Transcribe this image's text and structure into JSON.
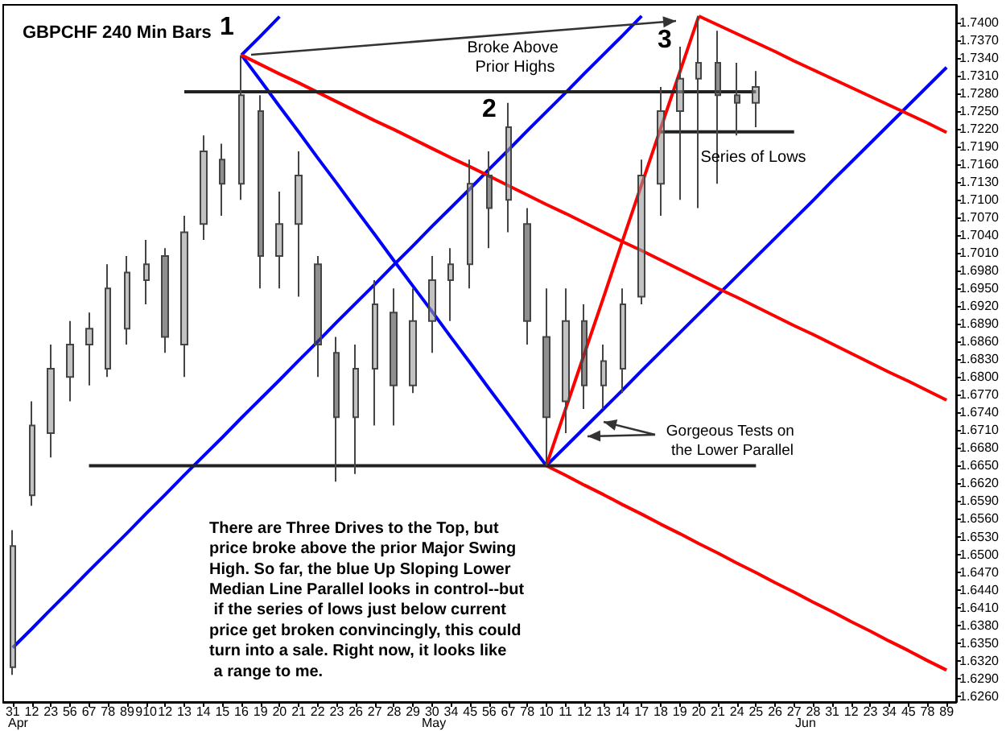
{
  "chart_data": {
    "type": "candlestick",
    "title": "GBPCHF 240 Min Bars",
    "categories": [
      "31",
      "12",
      "23",
      "56",
      "67",
      "78",
      "89",
      "910",
      "12",
      "13",
      "14",
      "15",
      "16",
      "19",
      "20",
      "21",
      "22",
      "23",
      "26",
      "27",
      "28",
      "29",
      "30",
      "34",
      "45",
      "56",
      "67",
      "78",
      "10",
      "11",
      "12",
      "13",
      "14",
      "17",
      "18",
      "19",
      "20",
      "21",
      "24",
      "25",
      "26",
      "27",
      "28",
      "31",
      "12",
      "23",
      "34",
      "45",
      "78",
      "89"
    ],
    "ohlc": [
      [
        1.6309,
        1.6541,
        1.6296,
        1.6514
      ],
      [
        1.66,
        1.6759,
        1.6582,
        1.6718
      ],
      [
        1.6705,
        1.6855,
        1.6664,
        1.6814
      ],
      [
        1.68,
        1.6895,
        1.6759,
        1.6855
      ],
      [
        1.6855,
        1.6909,
        1.6786,
        1.6882
      ],
      [
        1.6814,
        1.6991,
        1.68,
        1.695
      ],
      [
        1.6882,
        1.7005,
        1.6855,
        1.6977
      ],
      [
        1.6964,
        1.7032,
        1.6923,
        1.6991
      ],
      [
        1.7005,
        1.7018,
        1.6841,
        1.6868
      ],
      [
        1.6855,
        1.7073,
        1.68,
        1.7045
      ],
      [
        1.7059,
        1.7209,
        1.7032,
        1.7182
      ],
      [
        1.7168,
        1.7195,
        1.7073,
        1.7127
      ],
      [
        1.7127,
        1.7345,
        1.71,
        1.7277
      ],
      [
        1.725,
        1.7277,
        1.695,
        1.7005
      ],
      [
        1.7005,
        1.7114,
        1.695,
        1.7059
      ],
      [
        1.7059,
        1.7182,
        1.6936,
        1.7141
      ],
      [
        1.6991,
        1.7005,
        1.68,
        1.6855
      ],
      [
        1.6841,
        1.6868,
        1.6623,
        1.6732
      ],
      [
        1.6732,
        1.6855,
        1.6636,
        1.6814
      ],
      [
        1.6814,
        1.6964,
        1.6718,
        1.6923
      ],
      [
        1.6909,
        1.695,
        1.6718,
        1.6786
      ],
      [
        1.6786,
        1.695,
        1.6773,
        1.6895
      ],
      [
        1.6895,
        1.7005,
        1.6841,
        1.6964
      ],
      [
        1.6964,
        1.7018,
        1.6895,
        1.6991
      ],
      [
        1.6991,
        1.7168,
        1.695,
        1.7127
      ],
      [
        1.7141,
        1.7182,
        1.7018,
        1.7086
      ],
      [
        1.71,
        1.7264,
        1.7045,
        1.7223
      ],
      [
        1.7059,
        1.7086,
        1.6855,
        1.6895
      ],
      [
        1.6868,
        1.695,
        1.665,
        1.6732
      ],
      [
        1.6759,
        1.695,
        1.6705,
        1.6895
      ],
      [
        1.6895,
        1.6923,
        1.6746,
        1.6786
      ],
      [
        1.6786,
        1.6855,
        1.6746,
        1.6827
      ],
      [
        1.6814,
        1.695,
        1.6773,
        1.6923
      ],
      [
        1.6936,
        1.7168,
        1.6923,
        1.7141
      ],
      [
        1.7127,
        1.7291,
        1.7073,
        1.725
      ],
      [
        1.725,
        1.7359,
        1.71,
        1.7305
      ],
      [
        1.7305,
        1.7411,
        1.7086,
        1.7332
      ],
      [
        1.7332,
        1.7386,
        1.7127,
        1.7277
      ],
      [
        1.7277,
        1.7332,
        1.7209,
        1.7264
      ],
      [
        1.7264,
        1.7318,
        1.7223,
        1.7291
      ],
      null,
      null,
      null,
      null,
      null,
      null,
      null,
      null,
      null,
      null
    ],
    "series": [
      {
        "type": "line",
        "color": "#0000ff",
        "values": [
          1.6342,
          1.6374,
          1.6407,
          1.6439,
          1.6472,
          1.6504,
          1.6536,
          1.6569,
          1.6601,
          1.6634,
          1.6666,
          1.6698,
          1.6731,
          1.6763,
          1.6795,
          1.6828,
          1.686,
          1.6893,
          1.6925,
          1.6957,
          1.699,
          1.7022,
          1.7055,
          1.7087,
          1.7119,
          1.7152,
          1.7184,
          1.7217,
          1.7249,
          1.7281,
          1.7314,
          1.7346,
          1.7378,
          1.7411,
          null,
          null,
          null,
          null,
          null,
          null,
          null,
          null,
          null,
          null,
          null,
          null,
          null,
          null,
          null,
          null
        ]
      },
      {
        "type": "line",
        "color": "#0000ff",
        "values": [
          null,
          null,
          null,
          null,
          null,
          null,
          null,
          null,
          null,
          null,
          null,
          null,
          1.7345,
          1.7377,
          1.741,
          null,
          null,
          null,
          null,
          null,
          null,
          null,
          null,
          null,
          null,
          null,
          null,
          null,
          null,
          null,
          null,
          null,
          null,
          null,
          null,
          null,
          null,
          null,
          null,
          null,
          null,
          null,
          null,
          null,
          null,
          null,
          null,
          null,
          null,
          null
        ]
      },
      {
        "type": "line",
        "color": "#0000ff",
        "values": [
          null,
          null,
          null,
          null,
          null,
          null,
          null,
          null,
          null,
          null,
          null,
          null,
          1.7345,
          1.7302,
          1.7258,
          1.7215,
          1.7171,
          1.7128,
          1.7084,
          1.7041,
          1.6997,
          1.6954,
          1.6911,
          1.6867,
          1.6824,
          1.678,
          1.6737,
          1.6693,
          1.665,
          null,
          null,
          null,
          null,
          null,
          null,
          null,
          null,
          null,
          null,
          null,
          null,
          null,
          null,
          null,
          null,
          null,
          null,
          null,
          null,
          null
        ]
      },
      {
        "type": "line",
        "color": "#0000ff",
        "values": [
          null,
          null,
          null,
          null,
          null,
          null,
          null,
          null,
          null,
          null,
          null,
          null,
          null,
          null,
          null,
          null,
          null,
          null,
          null,
          null,
          null,
          null,
          null,
          null,
          null,
          null,
          null,
          null,
          1.665,
          1.6682,
          1.6714,
          1.6746,
          1.6778,
          1.6811,
          1.6843,
          1.6875,
          1.6907,
          1.6939,
          1.6971,
          1.7003,
          1.7035,
          1.7067,
          1.7099,
          1.7132,
          1.7164,
          1.7196,
          1.7228,
          1.726,
          1.7292,
          1.7324
        ]
      },
      {
        "type": "line",
        "color": "#ff0000",
        "values": [
          null,
          null,
          null,
          null,
          null,
          null,
          null,
          null,
          null,
          null,
          null,
          null,
          1.7345,
          1.7329,
          1.7313,
          1.7298,
          1.7282,
          1.7266,
          1.725,
          1.7234,
          1.7219,
          1.7203,
          1.7187,
          1.7171,
          1.7156,
          1.714,
          1.7124,
          1.7108,
          1.7092,
          1.7077,
          1.7061,
          1.7045,
          1.7029,
          1.7014,
          1.6998,
          1.6982,
          1.6966,
          1.695,
          1.6935,
          1.6919,
          1.6903,
          1.6887,
          1.6872,
          1.6856,
          1.684,
          1.6824,
          1.6808,
          1.6793,
          1.6777,
          1.6761
        ]
      },
      {
        "type": "line",
        "color": "#ff0000",
        "values": [
          null,
          null,
          null,
          null,
          null,
          null,
          null,
          null,
          null,
          null,
          null,
          null,
          null,
          null,
          null,
          null,
          null,
          null,
          null,
          null,
          null,
          null,
          null,
          null,
          null,
          null,
          null,
          null,
          null,
          null,
          null,
          null,
          null,
          null,
          null,
          null,
          1.7411,
          1.7396,
          1.7381,
          1.7366,
          1.7351,
          1.7335,
          1.732,
          1.7305,
          1.729,
          1.7275,
          1.726,
          1.7245,
          1.723,
          1.7214
        ]
      },
      {
        "type": "line",
        "color": "#ff0000",
        "values": [
          null,
          null,
          null,
          null,
          null,
          null,
          null,
          null,
          null,
          null,
          null,
          null,
          null,
          null,
          null,
          null,
          null,
          null,
          null,
          null,
          null,
          null,
          null,
          null,
          null,
          null,
          null,
          null,
          1.665,
          1.6634,
          1.6617,
          1.6601,
          1.6584,
          1.6568,
          1.6551,
          1.6535,
          1.6518,
          1.6502,
          1.6485,
          1.6469,
          1.6452,
          1.6436,
          1.6419,
          1.6403,
          1.6386,
          1.637,
          1.6353,
          1.6337,
          1.632,
          1.6304
        ]
      },
      {
        "type": "line",
        "color": "#ff0000",
        "values": [
          null,
          null,
          null,
          null,
          null,
          null,
          null,
          null,
          null,
          null,
          null,
          null,
          null,
          null,
          null,
          null,
          null,
          null,
          null,
          null,
          null,
          null,
          null,
          null,
          null,
          null,
          null,
          null,
          1.665,
          1.6745,
          1.684,
          1.6935,
          1.7031,
          1.7126,
          1.7221,
          1.7316,
          1.7411,
          null,
          null,
          null,
          null,
          null,
          null,
          null,
          null,
          null,
          null,
          null,
          null,
          null
        ]
      },
      {
        "type": "line",
        "color": "#222222",
        "values": [
          null,
          null,
          null,
          null,
          null,
          null,
          null,
          null,
          null,
          1.7283,
          1.7283,
          1.7283,
          1.7283,
          1.7283,
          1.7283,
          1.7283,
          1.7283,
          1.7283,
          1.7283,
          1.7283,
          1.7283,
          1.7283,
          1.7283,
          1.7283,
          1.7283,
          1.7283,
          1.7283,
          1.7283,
          1.7283,
          1.7283,
          1.7283,
          1.7283,
          1.7283,
          1.7283,
          1.7283,
          1.7283,
          1.7283,
          1.7283,
          1.7283,
          1.7283,
          null,
          null,
          null,
          null,
          null,
          null,
          null,
          null,
          null,
          null
        ]
      },
      {
        "type": "line",
        "color": "#222222",
        "values": [
          null,
          null,
          null,
          null,
          1.665,
          1.665,
          1.665,
          1.665,
          1.665,
          1.665,
          1.665,
          1.665,
          1.665,
          1.665,
          1.665,
          1.665,
          1.665,
          1.665,
          1.665,
          1.665,
          1.665,
          1.665,
          1.665,
          1.665,
          1.665,
          1.665,
          1.665,
          1.665,
          1.665,
          1.665,
          1.665,
          1.665,
          1.665,
          1.665,
          1.665,
          1.665,
          1.665,
          1.665,
          1.665,
          1.665,
          null,
          null,
          null,
          null,
          null,
          null,
          null,
          null,
          null,
          null
        ]
      },
      {
        "type": "line",
        "color": "#222222",
        "values": [
          null,
          null,
          null,
          null,
          null,
          null,
          null,
          null,
          null,
          null,
          null,
          null,
          null,
          null,
          null,
          null,
          null,
          null,
          null,
          null,
          null,
          null,
          null,
          null,
          null,
          null,
          null,
          null,
          null,
          null,
          null,
          null,
          null,
          null,
          1.7215,
          1.7215,
          1.7215,
          1.7215,
          1.7215,
          1.7215,
          1.7215,
          1.7215,
          null,
          null,
          null,
          null,
          null,
          null,
          null,
          null
        ]
      }
    ],
    "marker": "none",
    "line_style": "solid",
    "annotations": [
      "1",
      "2",
      "3",
      "Broke Above Prior Highs",
      "Series of Lows",
      "Gorgeous Tests on the Lower Parallel",
      "There are Three Drives to the Top, but price broke above the prior Major Swing High. So far, the blue Up Sloping Lower Median Line Parallel looks in control--but if the series of lows just below current price get broken convincingly, this could turn into a sale. Right now, it looks like a range to me.",
      "Apr",
      "May",
      "Jun"
    ],
    "ylim": [
      1.625,
      1.743
    ],
    "yticks": [
      {
        "value": 1.626,
        "label": "1.6260"
      },
      {
        "value": 1.629,
        "label": "1.6290"
      },
      {
        "value": 1.632,
        "label": "1.6320"
      },
      {
        "value": 1.635,
        "label": "1.6350"
      },
      {
        "value": 1.638,
        "label": "1.6380"
      },
      {
        "value": 1.641,
        "label": "1.6410"
      },
      {
        "value": 1.644,
        "label": "1.6440"
      },
      {
        "value": 1.647,
        "label": "1.6470"
      },
      {
        "value": 1.65,
        "label": "1.6500"
      },
      {
        "value": 1.653,
        "label": "1.6530"
      },
      {
        "value": 1.656,
        "label": "1.6560"
      },
      {
        "value": 1.659,
        "label": "1.6590"
      },
      {
        "value": 1.662,
        "label": "1.6620"
      },
      {
        "value": 1.665,
        "label": "1.6650"
      },
      {
        "value": 1.668,
        "label": "1.6680"
      },
      {
        "value": 1.671,
        "label": "1.6710"
      },
      {
        "value": 1.674,
        "label": "1.6740"
      },
      {
        "value": 1.677,
        "label": "1.6770"
      },
      {
        "value": 1.68,
        "label": "1.6800"
      },
      {
        "value": 1.683,
        "label": "1.6830"
      },
      {
        "value": 1.686,
        "label": "1.6860"
      },
      {
        "value": 1.689,
        "label": "1.6890"
      },
      {
        "value": 1.692,
        "label": "1.6920"
      },
      {
        "value": 1.695,
        "label": "1.6950"
      },
      {
        "value": 1.698,
        "label": "1.6980"
      },
      {
        "value": 1.701,
        "label": "1.7010"
      },
      {
        "value": 1.704,
        "label": "1.7040"
      },
      {
        "value": 1.707,
        "label": "1.7070"
      },
      {
        "value": 1.71,
        "label": "1.7100"
      },
      {
        "value": 1.713,
        "label": "1.7130"
      },
      {
        "value": 1.716,
        "label": "1.7160"
      },
      {
        "value": 1.719,
        "label": "1.7190"
      },
      {
        "value": 1.722,
        "label": "1.7220"
      },
      {
        "value": 1.725,
        "label": "1.7250"
      },
      {
        "value": 1.728,
        "label": "1.7280"
      },
      {
        "value": 1.731,
        "label": "1.7310"
      },
      {
        "value": 1.734,
        "label": "1.7340"
      },
      {
        "value": 1.737,
        "label": "1.7370"
      },
      {
        "value": 1.74,
        "label": "1.7400"
      }
    ]
  }
}
